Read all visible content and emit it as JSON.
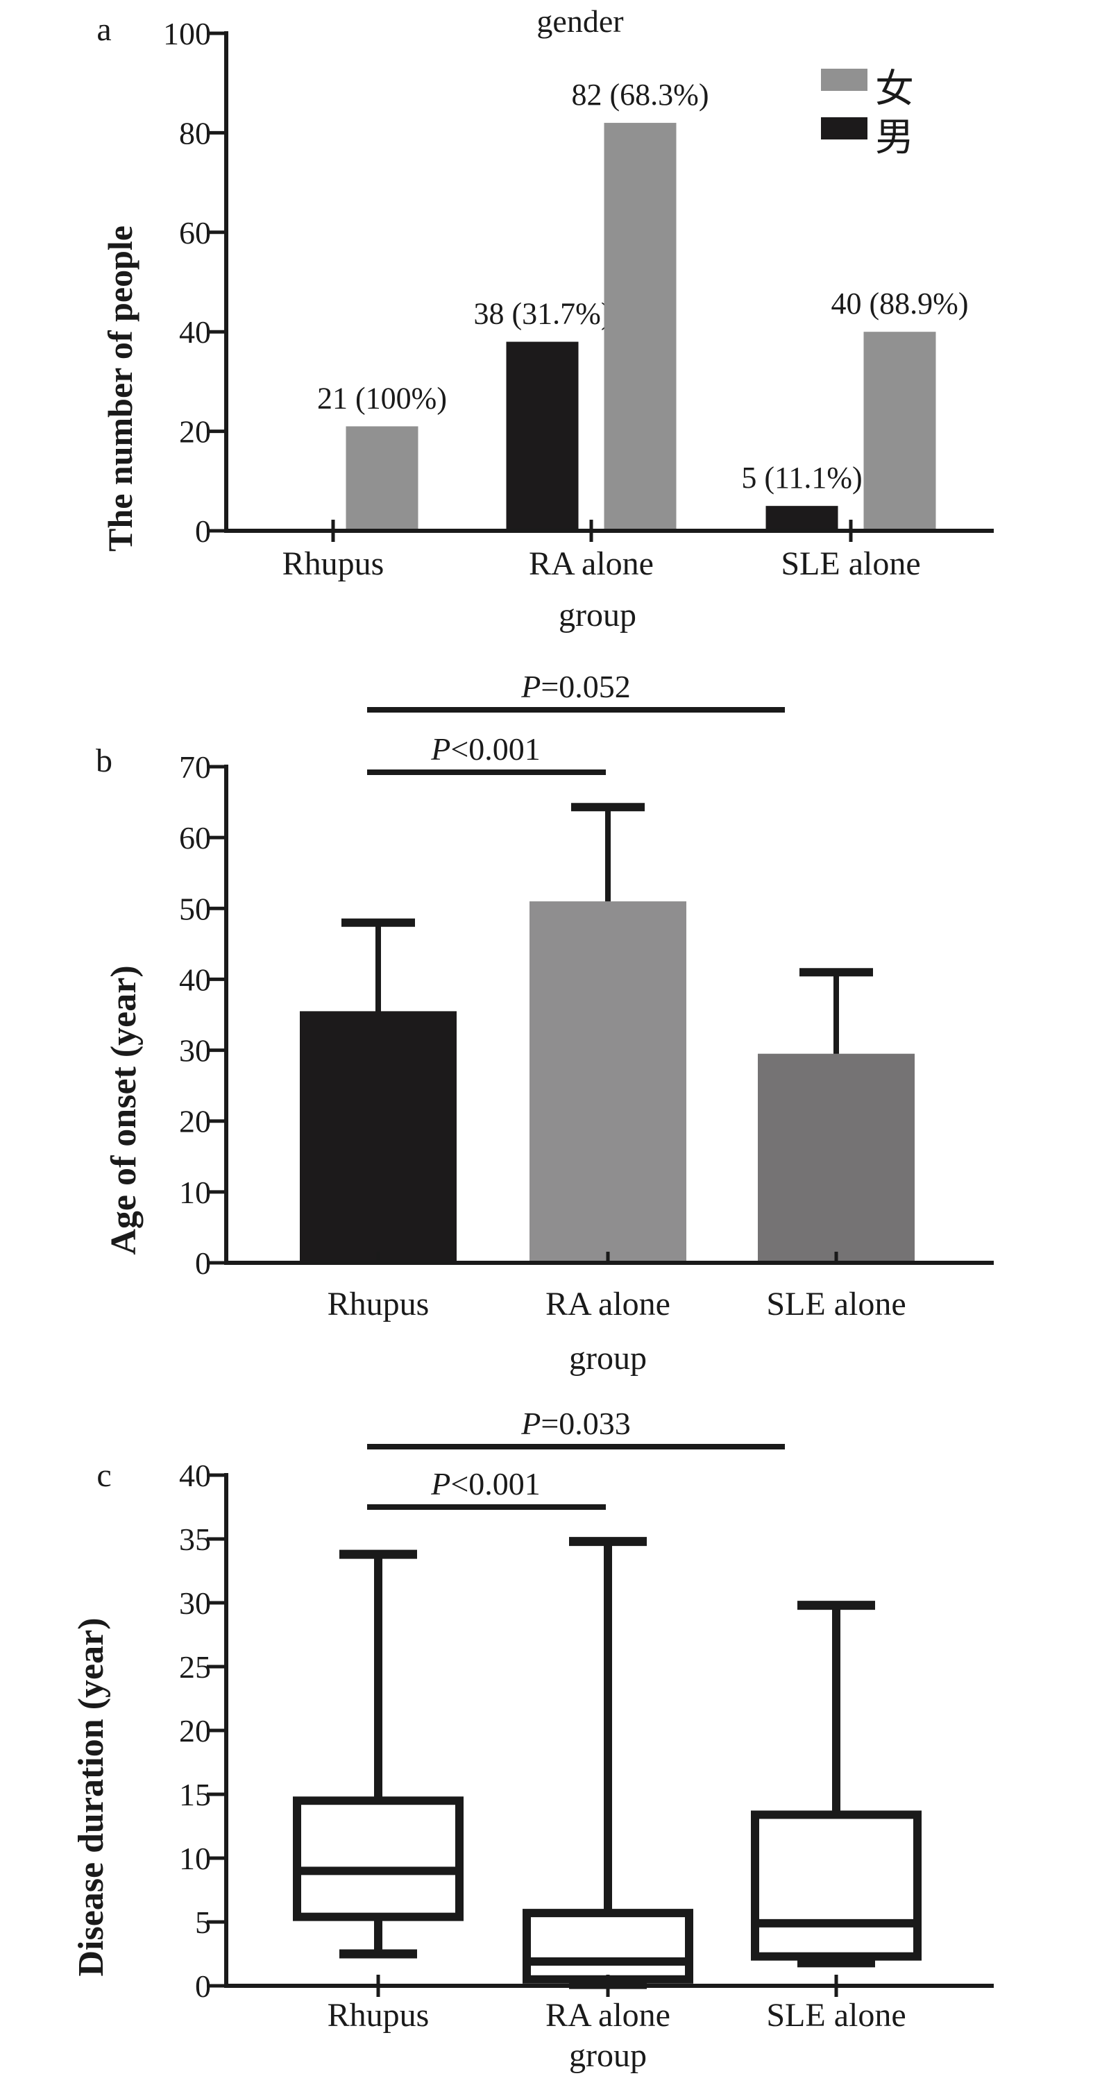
{
  "colors": {
    "axis": "#1a1a1a",
    "black_bar": "#1c1a1b",
    "female_gray": "#919191",
    "ra_gray": "#8f8e8f",
    "sle_gray": "#757374",
    "background": "#ffffff"
  },
  "chart_data": [
    {
      "panel_letter": "a",
      "type": "bar",
      "title": "gender",
      "categories": [
        "Rhupus",
        "RA alone",
        "SLE alone"
      ],
      "xlabel": "group",
      "ylabel": "The number of people",
      "ylim": [
        0,
        100
      ],
      "yticks": [
        0,
        20,
        40,
        60,
        80,
        100
      ],
      "legend_position": "top-right",
      "legend": [
        {
          "label": "女",
          "color_key": "female_gray"
        },
        {
          "label": "男",
          "color_key": "black_bar"
        }
      ],
      "series": [
        {
          "name": "男",
          "color_key": "black_bar",
          "values": [
            0,
            38,
            5
          ],
          "value_labels": [
            "",
            "38 (31.7%)",
            "5 (11.1%)"
          ]
        },
        {
          "name": "女",
          "color_key": "female_gray",
          "values": [
            21,
            82,
            40
          ],
          "value_labels": [
            "21 (100%)",
            "82 (68.3%)",
            "40 (88.9%)"
          ]
        }
      ]
    },
    {
      "panel_letter": "b",
      "type": "bar",
      "categories": [
        "Rhupus",
        "RA alone",
        "SLE alone"
      ],
      "xlabel": "group",
      "ylabel": "Age of onset (year)",
      "ylim": [
        0,
        70
      ],
      "yticks": [
        0,
        10,
        20,
        30,
        40,
        50,
        60,
        70
      ],
      "values": [
        35.5,
        51,
        29.5
      ],
      "error_up_to": [
        48,
        64.3,
        41
      ],
      "bar_color_keys": [
        "black_bar",
        "ra_gray",
        "sle_gray"
      ],
      "significance": [
        {
          "label": "P=0.052",
          "from": "Rhupus",
          "to": "SLE alone"
        },
        {
          "label": "P<0.001",
          "from": "Rhupus",
          "to": "RA alone"
        }
      ]
    },
    {
      "panel_letter": "c",
      "type": "boxplot",
      "categories": [
        "Rhupus",
        "RA alone",
        "SLE alone"
      ],
      "xlabel": "group",
      "ylabel": "Disease duration (year)",
      "ylim": [
        0,
        40
      ],
      "yticks": [
        0,
        5,
        10,
        15,
        20,
        25,
        30,
        35,
        40
      ],
      "boxes": [
        {
          "min": 2.5,
          "q1": 5.4,
          "median": 9.0,
          "q3": 14.5,
          "max": 33.8
        },
        {
          "min": 0.1,
          "q1": 0.5,
          "median": 1.9,
          "q3": 5.7,
          "max": 34.8
        },
        {
          "min": 1.8,
          "q1": 2.3,
          "median": 4.9,
          "q3": 13.4,
          "max": 29.8
        }
      ],
      "significance": [
        {
          "label": "P=0.033",
          "from": "Rhupus",
          "to": "SLE alone"
        },
        {
          "label": "P<0.001",
          "from": "Rhupus",
          "to": "RA alone"
        }
      ]
    }
  ]
}
